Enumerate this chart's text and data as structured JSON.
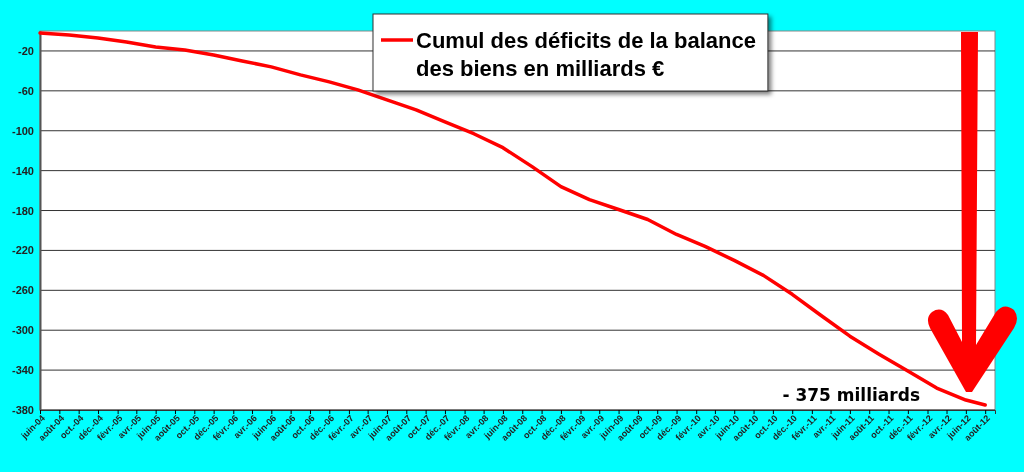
{
  "chart_data": {
    "type": "line",
    "legend": "top",
    "grid": "y",
    "marker": "none",
    "line_style": "solid",
    "ylim": [
      -380,
      0
    ],
    "yticks": [
      -20,
      -60,
      -100,
      -140,
      -180,
      -220,
      -260,
      -300,
      -340,
      -380
    ],
    "xlim": [
      "2004-06",
      "2012-09"
    ],
    "xticks": [
      {
        "value": "2004-06",
        "label": "juin-04"
      },
      {
        "value": "2004-08",
        "label": "août-04"
      },
      {
        "value": "2004-10",
        "label": "oct.-04"
      },
      {
        "value": "2004-12",
        "label": "déc.-04"
      },
      {
        "value": "2005-02",
        "label": "févr.-05"
      },
      {
        "value": "2005-04",
        "label": "avr.-05"
      },
      {
        "value": "2005-06",
        "label": "juin-05"
      },
      {
        "value": "2005-08",
        "label": "août-05"
      },
      {
        "value": "2005-10",
        "label": "oct.-05"
      },
      {
        "value": "2005-12",
        "label": "déc.-05"
      },
      {
        "value": "2006-02",
        "label": "févr.-06"
      },
      {
        "value": "2006-04",
        "label": "avr.-06"
      },
      {
        "value": "2006-06",
        "label": "juin-06"
      },
      {
        "value": "2006-08",
        "label": "août-06"
      },
      {
        "value": "2006-10",
        "label": "oct.-06"
      },
      {
        "value": "2006-12",
        "label": "déc.-06"
      },
      {
        "value": "2007-02",
        "label": "févr.-07"
      },
      {
        "value": "2007-04",
        "label": "avr.-07"
      },
      {
        "value": "2007-06",
        "label": "juin-07"
      },
      {
        "value": "2007-08",
        "label": "août-07"
      },
      {
        "value": "2007-10",
        "label": "oct.-07"
      },
      {
        "value": "2007-12",
        "label": "déc.-07"
      },
      {
        "value": "2008-02",
        "label": "févr.-08"
      },
      {
        "value": "2008-04",
        "label": "avr.-08"
      },
      {
        "value": "2008-06",
        "label": "juin-08"
      },
      {
        "value": "2008-08",
        "label": "août-08"
      },
      {
        "value": "2008-10",
        "label": "oct.-08"
      },
      {
        "value": "2008-12",
        "label": "déc.-08"
      },
      {
        "value": "2009-02",
        "label": "févr.-09"
      },
      {
        "value": "2009-04",
        "label": "avr.-09"
      },
      {
        "value": "2009-06",
        "label": "juin-09"
      },
      {
        "value": "2009-08",
        "label": "août-09"
      },
      {
        "value": "2009-10",
        "label": "oct.-09"
      },
      {
        "value": "2009-12",
        "label": "déc.-09"
      },
      {
        "value": "2010-02",
        "label": "févr.-10"
      },
      {
        "value": "2010-04",
        "label": "avr.-10"
      },
      {
        "value": "2010-06",
        "label": "juin-10"
      },
      {
        "value": "2010-08",
        "label": "août-10"
      },
      {
        "value": "2010-10",
        "label": "oct.-10"
      },
      {
        "value": "2010-12",
        "label": "déc.-10"
      },
      {
        "value": "2011-02",
        "label": "févr.-11"
      },
      {
        "value": "2011-04",
        "label": "avr.-11"
      },
      {
        "value": "2011-06",
        "label": "juin-11"
      },
      {
        "value": "2011-08",
        "label": "août-11"
      },
      {
        "value": "2011-10",
        "label": "oct.-11"
      },
      {
        "value": "2011-12",
        "label": "déc.-11"
      },
      {
        "value": "2012-02",
        "label": "févr.-12"
      },
      {
        "value": "2012-04",
        "label": "avr.-12"
      },
      {
        "value": "2012-06",
        "label": "juin-12"
      },
      {
        "value": "2012-08",
        "label": "août-12"
      }
    ],
    "x": [
      "2004-06",
      "2004-09",
      "2004-12",
      "2005-03",
      "2005-06",
      "2005-09",
      "2005-12",
      "2006-03",
      "2006-06",
      "2006-09",
      "2006-12",
      "2007-03",
      "2007-06",
      "2007-09",
      "2007-12",
      "2008-03",
      "2008-06",
      "2008-09",
      "2008-12",
      "2009-03",
      "2009-06",
      "2009-09",
      "2009-12",
      "2010-03",
      "2010-06",
      "2010-09",
      "2010-12",
      "2011-03",
      "2011-06",
      "2011-09",
      "2011-12",
      "2012-03",
      "2012-06",
      "2012-08"
    ],
    "series": [
      {
        "name": "Cumul des déficits de la balance des biens en milliards €",
        "color": "#ff0000",
        "values": [
          -2,
          -4,
          -7,
          -11,
          -16,
          -19,
          -24,
          -30,
          -36,
          -44,
          -51,
          -59,
          -69,
          -79,
          -91,
          -103,
          -117,
          -136,
          -156,
          -169,
          -179,
          -189,
          -204,
          -216,
          -230,
          -245,
          -264,
          -285,
          -306,
          -324,
          -341,
          -358,
          -370,
          -375
        ]
      }
    ],
    "annotations": [
      "- 375 milliards"
    ]
  }
}
